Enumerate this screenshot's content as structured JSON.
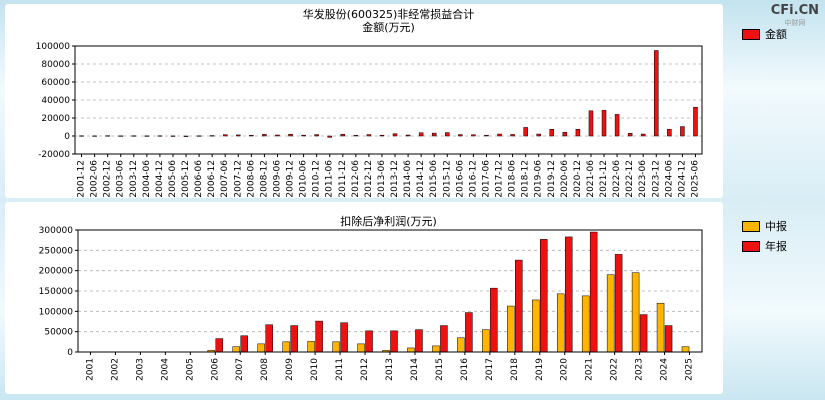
{
  "brand": {
    "name": "CFi.CN",
    "sub": "中财网"
  },
  "chart_data": [
    {
      "type": "bar",
      "title": "华发股份(600325)非经常损益合计",
      "subtitle": "金额(万元)",
      "grid": true,
      "legend_position": "right",
      "ylim": [
        -20000,
        100000
      ],
      "yticks": [
        -20000,
        0,
        20000,
        40000,
        60000,
        80000,
        100000
      ],
      "categories": [
        "2001-12",
        "2002-06",
        "2002-12",
        "2003-06",
        "2003-12",
        "2004-06",
        "2004-12",
        "2005-06",
        "2005-12",
        "2006-06",
        "2006-12",
        "2007-06",
        "2007-12",
        "2008-06",
        "2008-12",
        "2009-06",
        "2009-12",
        "2010-06",
        "2010-12",
        "2011-06",
        "2011-12",
        "2012-06",
        "2012-12",
        "2013-06",
        "2013-12",
        "2014-06",
        "2014-12",
        "2015-06",
        "2015-12",
        "2016-06",
        "2016-12",
        "2017-06",
        "2017-12",
        "2018-06",
        "2018-12",
        "2019-06",
        "2019-12",
        "2020-06",
        "2020-12",
        "2021-06",
        "2021-12",
        "2022-06",
        "2022-12",
        "2023-06",
        "2023-12",
        "2024-06",
        "2024-12",
        "2025-06"
      ],
      "series": [
        {
          "name": "金额",
          "color": "#ee1111",
          "values": [
            300,
            200,
            400,
            200,
            300,
            200,
            300,
            150,
            -300,
            250,
            500,
            1500,
            1200,
            900,
            1800,
            1100,
            2000,
            900,
            1600,
            -1500,
            1900,
            700,
            1600,
            900,
            2600,
            1100,
            3600,
            3200,
            3800,
            1600,
            1400,
            900,
            2200,
            1700,
            9500,
            2200,
            7500,
            4200,
            7500,
            28000,
            28500,
            24000,
            3000,
            2200,
            95000,
            7500,
            10500,
            32000
          ]
        }
      ]
    },
    {
      "type": "bar",
      "title": "扣除后净利润(万元)",
      "grid": true,
      "legend_position": "right",
      "ylim": [
        0,
        300000
      ],
      "yticks": [
        0,
        50000,
        100000,
        150000,
        200000,
        250000,
        300000
      ],
      "categories": [
        "2001",
        "2002",
        "2003",
        "2004",
        "2005",
        "2006",
        "2007",
        "2008",
        "2009",
        "2010",
        "2011",
        "2012",
        "2013",
        "2014",
        "2015",
        "2016",
        "2017",
        "2018",
        "2019",
        "2020",
        "2021",
        "2022",
        "2023",
        "2024",
        "2025"
      ],
      "series": [
        {
          "name": "中报",
          "color": "#ffb400",
          "values": [
            null,
            null,
            null,
            null,
            null,
            4000,
            13000,
            20000,
            25000,
            26000,
            25000,
            20000,
            4000,
            10000,
            15000,
            35000,
            55000,
            113000,
            128000,
            143000,
            138000,
            190000,
            195000,
            120000,
            13000
          ]
        },
        {
          "name": "年报",
          "color": "#ee1111",
          "values": [
            null,
            null,
            null,
            null,
            null,
            33000,
            40000,
            67000,
            65000,
            76000,
            72000,
            52000,
            52000,
            55000,
            65000,
            97000,
            157000,
            226000,
            277000,
            283000,
            295000,
            240000,
            92000,
            65000,
            null
          ]
        }
      ]
    }
  ]
}
